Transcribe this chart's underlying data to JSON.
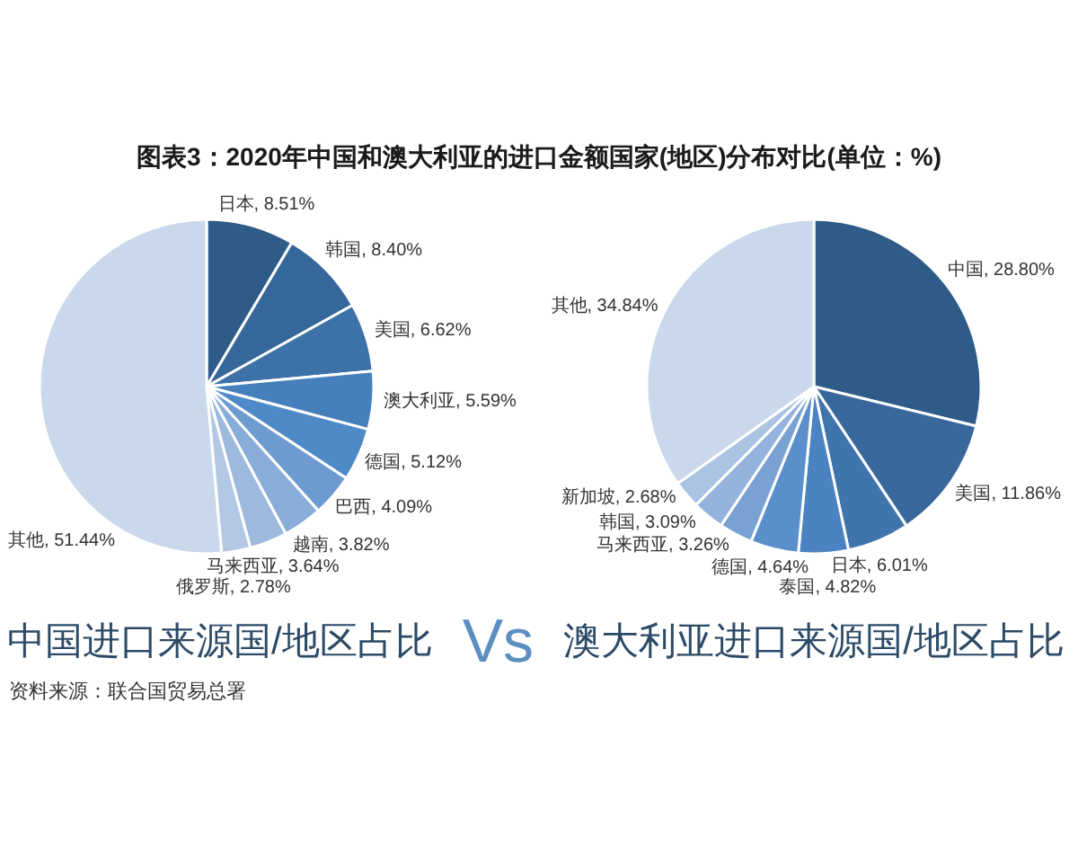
{
  "chart_data": [
    {
      "type": "pie",
      "title": "图表3：2020年中国和澳大利亚的进口金额国家(地区)分布对比(单位：%)",
      "subtitle": "中国进口来源国/地区占比",
      "categories": [
        "日本",
        "韩国",
        "美国",
        "澳大利亚",
        "德国",
        "巴西",
        "越南",
        "马来西亚",
        "俄罗斯",
        "其他"
      ],
      "values": [
        8.51,
        8.4,
        6.62,
        5.59,
        5.12,
        4.09,
        3.82,
        3.64,
        2.78,
        51.44
      ],
      "value_labels": [
        "8.51%",
        "8.40%",
        "6.62%",
        "5.59%",
        "5.12%",
        "4.09%",
        "3.82%",
        "3.64%",
        "2.78%",
        "51.44%"
      ],
      "colors": [
        "#2e5b88",
        "#35679a",
        "#3d72a8",
        "#4580bd",
        "#4f8ac8",
        "#6d9bd0",
        "#88add8",
        "#9db9de",
        "#b2c8e4",
        "#c9d8eb"
      ],
      "annotations": [
        "Vs",
        "资料来源：联合国贸易总署"
      ]
    },
    {
      "type": "pie",
      "subtitle": "澳大利亚进口来源国/地区占比",
      "categories": [
        "中国",
        "美国",
        "日本",
        "泰国",
        "德国",
        "马来西亚",
        "韩国",
        "新加坡",
        "其他"
      ],
      "values": [
        28.8,
        11.86,
        6.01,
        4.82,
        4.64,
        3.26,
        3.09,
        2.68,
        34.84
      ],
      "value_labels": [
        "28.80%",
        "11.86%",
        "6.01%",
        "4.82%",
        "4.64%",
        "3.26%",
        "3.09%",
        "2.68%",
        "34.84%"
      ],
      "colors": [
        "#2e5b88",
        "#38689b",
        "#4074ac",
        "#4a82c2",
        "#5b8fcc",
        "#7aa1d3",
        "#93b3dc",
        "#aac3e3",
        "#c9d8eb"
      ]
    }
  ]
}
